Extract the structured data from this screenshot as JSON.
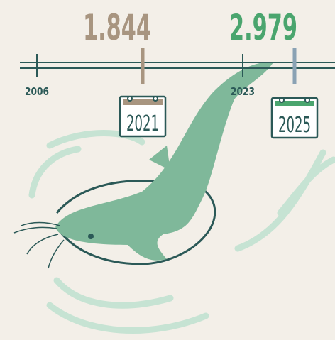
{
  "timeline": {
    "labels": [
      "2006",
      "2023"
    ],
    "line_color": "#2b5957"
  },
  "markers": [
    {
      "value": "1.844",
      "year": "2021",
      "color": "#a89580",
      "tick_color": "#a89580"
    },
    {
      "value": "2.979",
      "year": "2025",
      "color": "#4aa56e",
      "tick_color": "#8aa2b4"
    }
  ]
}
